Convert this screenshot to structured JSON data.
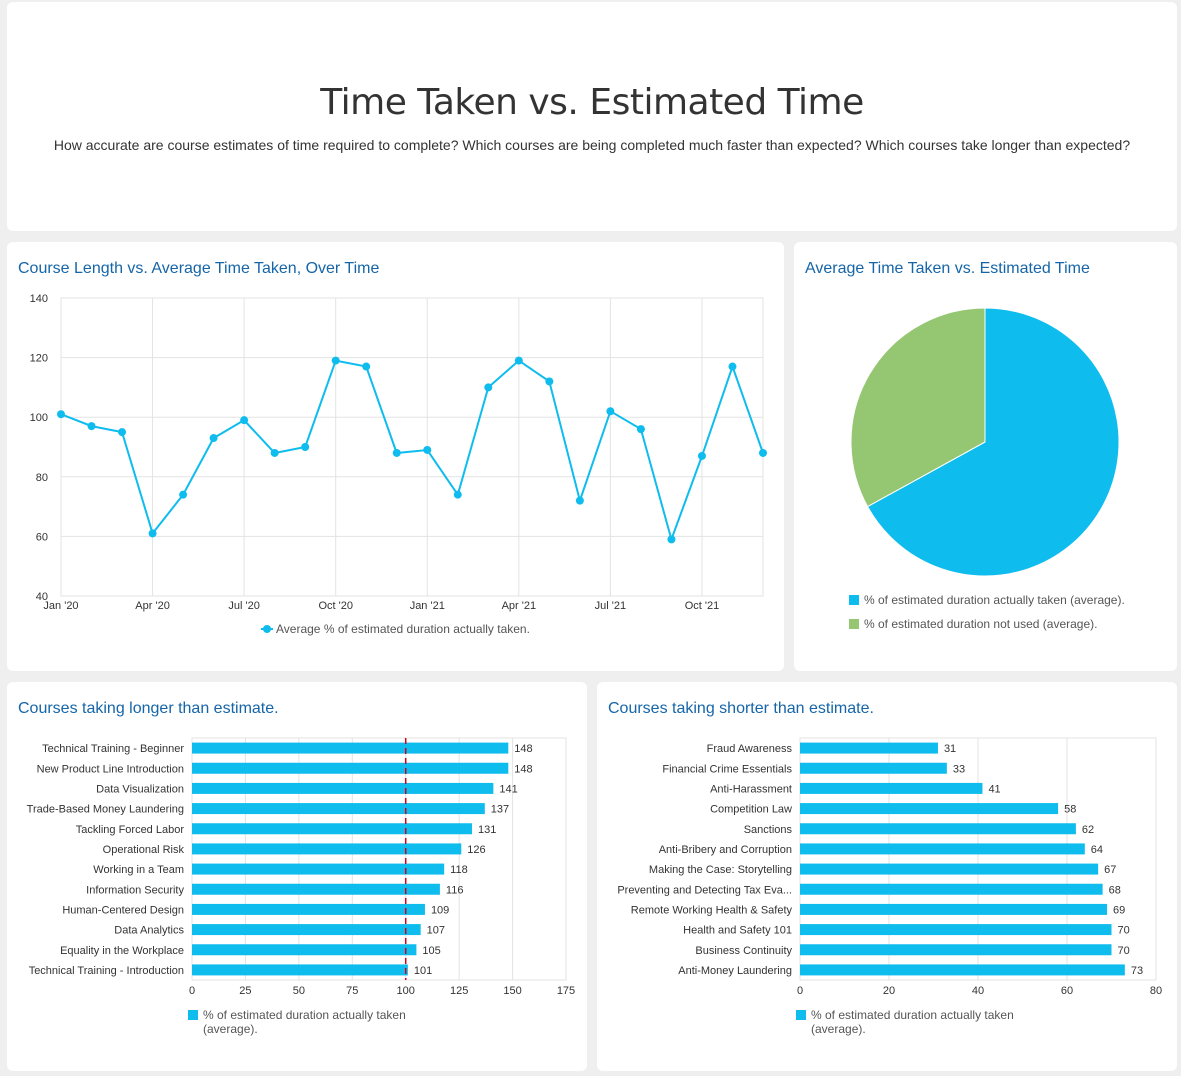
{
  "header": {
    "title": "Time Taken vs. Estimated Time",
    "subtitle": "How accurate are course estimates of time required to complete? Which courses are being completed much faster than expected? Which courses take longer than expected?"
  },
  "colors": {
    "primary": "#0ebcee",
    "secondary": "#95c671",
    "title": "#1565a8",
    "refline": "#d0021b",
    "grid": "#e3e3e3"
  },
  "chart_data": [
    {
      "type": "line",
      "title": "Course Length vs. Average Time Taken, Over Time",
      "x": [
        "Jan '20",
        "Feb '20",
        "Mar '20",
        "Apr '20",
        "May '20",
        "Jun '20",
        "Jul '20",
        "Aug '20",
        "Sep '20",
        "Oct '20",
        "Nov '20",
        "Dec '20",
        "Jan '21",
        "Feb '21",
        "Mar '21",
        "Apr '21",
        "May '21",
        "Jun '21",
        "Jul '21",
        "Aug '21",
        "Sep '21",
        "Oct '21",
        "Nov '21",
        "Dec '21"
      ],
      "series": [
        {
          "name": "Average % of estimated duration actually taken.",
          "values": [
            101,
            97,
            95,
            61,
            74,
            93,
            99,
            88,
            90,
            119,
            117,
            88,
            89,
            74,
            110,
            119,
            112,
            72,
            102,
            96,
            59,
            87,
            117,
            88
          ]
        }
      ],
      "tick_labels": [
        "Jan '20",
        "Apr '20",
        "Jul '20",
        "Oct '20",
        "Jan '21",
        "Apr '21",
        "Jul '21",
        "Oct '21"
      ],
      "ylim": [
        40,
        140
      ],
      "yticks": [
        40,
        60,
        80,
        100,
        120,
        140
      ],
      "grid": true,
      "legend": "bottom"
    },
    {
      "type": "pie",
      "title": "Average Time Taken vs. Estimated Time",
      "labels": [
        "% of estimated duration actually taken (average).",
        "% of estimated duration not used (average)."
      ],
      "values": [
        67,
        33
      ],
      "legend": "bottom"
    },
    {
      "type": "bar",
      "orientation": "horizontal",
      "title": "Courses taking longer than estimate.",
      "categories": [
        "Technical Training - Beginner",
        "New Product Line Introduction",
        "Data Visualization",
        "Trade-Based Money Laundering",
        "Tackling Forced Labor",
        "Operational Risk",
        "Working in a Team",
        "Information Security",
        "Human-Centered Design",
        "Data Analytics",
        "Equality in the Workplace",
        "Technical Training - Introduction"
      ],
      "series": [
        {
          "name": "% of estimated duration actually taken (average).",
          "values": [
            148,
            148,
            141,
            137,
            131,
            126,
            118,
            116,
            109,
            107,
            105,
            101
          ]
        }
      ],
      "xlim": [
        0,
        175
      ],
      "xticks": [
        0,
        25,
        50,
        75,
        100,
        125,
        150,
        175
      ],
      "reference_line": 100,
      "grid": true,
      "legend": "bottom-left"
    },
    {
      "type": "bar",
      "orientation": "horizontal",
      "title": "Courses taking shorter than estimate.",
      "categories": [
        "Fraud Awareness",
        "Financial Crime Essentials",
        "Anti-Harassment",
        "Competition Law",
        "Sanctions",
        "Anti-Bribery and Corruption",
        "Making the Case: Storytelling",
        "Preventing and Detecting Tax Eva...",
        "Remote Working Health & Safety",
        "Health and Safety 101",
        "Business Continuity",
        "Anti-Money Laundering"
      ],
      "series": [
        {
          "name": "% of estimated duration actually taken (average).",
          "values": [
            31,
            33,
            41,
            58,
            62,
            64,
            67,
            68,
            69,
            70,
            70,
            73
          ]
        }
      ],
      "xlim": [
        0,
        80
      ],
      "xticks": [
        0,
        20,
        40,
        60,
        80
      ],
      "grid": true,
      "legend": "bottom-left"
    }
  ]
}
